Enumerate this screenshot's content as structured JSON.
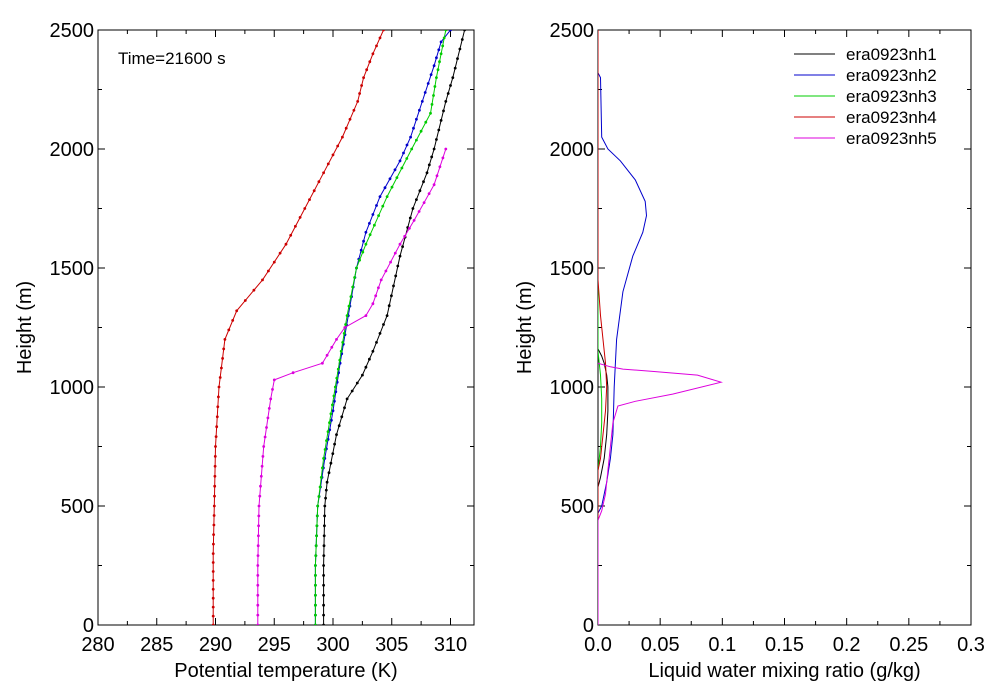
{
  "chart_data": [
    {
      "type": "line",
      "xlabel": "Potential temperature (K)",
      "ylabel": "Height (m)",
      "xlim": [
        280,
        312
      ],
      "ylim": [
        0,
        2500
      ],
      "xticks": [
        "280",
        "285",
        "290",
        "295",
        "300",
        "305",
        "310"
      ],
      "yticks": [
        "0",
        "500",
        "1000",
        "1500",
        "2000",
        "2500"
      ],
      "annotation": "Time=21600 s",
      "markers": true,
      "series": [
        {
          "name": "era0923nh1",
          "color": "#000000",
          "x": [
            299.2,
            299.2,
            299.3,
            299.5,
            300.3,
            301.2,
            302.5,
            303.4,
            304.6,
            305.7,
            306.8,
            308.0,
            308.6,
            309.6,
            310.2,
            311.2
          ],
          "y": [
            0,
            250,
            500,
            600,
            800,
            950,
            1050,
            1150,
            1300,
            1550,
            1750,
            1900,
            2000,
            2200,
            2300,
            2500
          ]
        },
        {
          "name": "era0923nh2",
          "color": "#0000cc",
          "x": [
            298.5,
            298.5,
            298.7,
            299.3,
            300.0,
            300.6,
            301.3,
            302.0,
            302.8,
            304.0,
            305.7,
            306.6,
            307.6,
            308.6,
            309.2,
            310.0
          ],
          "y": [
            0,
            250,
            500,
            700,
            900,
            1100,
            1300,
            1500,
            1650,
            1800,
            1950,
            2050,
            2200,
            2350,
            2450,
            2500
          ]
        },
        {
          "name": "era0923nh3",
          "color": "#00cc00",
          "x": [
            298.5,
            298.5,
            298.7,
            299.2,
            300.2,
            301.2,
            302.0,
            302.8,
            304.6,
            306.7,
            308.3,
            308.8,
            309.2,
            309.6
          ],
          "y": [
            0,
            250,
            500,
            700,
            1000,
            1300,
            1500,
            1600,
            1800,
            2000,
            2150,
            2300,
            2400,
            2500
          ]
        },
        {
          "name": "era0923nh4",
          "color": "#cc0000",
          "x": [
            289.8,
            289.8,
            289.9,
            290.0,
            290.3,
            290.8,
            291.8,
            294.0,
            296.0,
            297.6,
            299.2,
            300.8,
            302.1,
            302.6,
            303.4,
            304.3
          ],
          "y": [
            0,
            300,
            500,
            750,
            1000,
            1200,
            1320,
            1450,
            1600,
            1750,
            1900,
            2050,
            2200,
            2300,
            2400,
            2500
          ]
        },
        {
          "name": "era0923nh5",
          "color": "#dd00dd",
          "x": [
            293.6,
            293.6,
            293.7,
            294.1,
            294.7,
            295.0,
            296.6,
            299.1,
            300.3,
            301.0,
            302.8,
            303.4,
            304.1,
            305.7,
            306.9,
            308.6,
            309.6
          ],
          "y": [
            0,
            250,
            500,
            750,
            950,
            1030,
            1060,
            1100,
            1200,
            1250,
            1300,
            1350,
            1450,
            1600,
            1700,
            1850,
            2000
          ]
        }
      ]
    },
    {
      "type": "line",
      "xlabel": "Liquid water mixing ratio (g/kg)",
      "ylabel": "Height (m)",
      "xlim": [
        0,
        0.3
      ],
      "ylim": [
        0,
        2500
      ],
      "xticks": [
        "0.0",
        "0.05",
        "0.1",
        "0.15",
        "0.2",
        "0.25",
        "0.3"
      ],
      "yticks": [
        "0",
        "500",
        "1000",
        "1500",
        "2000",
        "2500"
      ],
      "legend_position": "top-right",
      "series": [
        {
          "name": "era0923nh1",
          "color": "#000000",
          "x": [
            0.0,
            0.0,
            0.002,
            0.005,
            0.007,
            0.008,
            0.008,
            0.007,
            0.005,
            0.003,
            0.0,
            0.0
          ],
          "y": [
            0,
            580,
            620,
            700,
            800,
            900,
            1000,
            1050,
            1100,
            1130,
            1160,
            2500
          ]
        },
        {
          "name": "era0923nh2",
          "color": "#0000cc",
          "x": [
            0.0,
            0.0,
            0.003,
            0.007,
            0.01,
            0.012,
            0.013,
            0.015,
            0.02,
            0.028,
            0.036,
            0.039,
            0.038,
            0.03,
            0.018,
            0.008,
            0.003,
            0.002,
            0.0
          ],
          "y": [
            0,
            470,
            500,
            600,
            700,
            800,
            1000,
            1200,
            1400,
            1550,
            1650,
            1720,
            1780,
            1870,
            1950,
            2000,
            2050,
            2300,
            2320
          ]
        },
        {
          "name": "era0923nh3",
          "color": "#00cc00",
          "x": [
            0.0,
            0.0,
            0.002,
            0.003,
            0.003,
            0.002,
            0.0,
            0.0
          ],
          "y": [
            0,
            650,
            750,
            850,
            950,
            1050,
            1150,
            2500
          ]
        },
        {
          "name": "era0923nh4",
          "color": "#cc0000",
          "x": [
            0.0,
            0.0,
            0.002,
            0.004,
            0.006,
            0.007,
            0.006,
            0.004,
            0.002,
            0.0,
            0.0
          ],
          "y": [
            0,
            650,
            700,
            800,
            900,
            1000,
            1100,
            1200,
            1300,
            1450,
            2500
          ]
        },
        {
          "name": "era0923nh5",
          "color": "#dd00dd",
          "x": [
            0.0,
            0.0,
            0.003,
            0.006,
            0.008,
            0.01,
            0.012,
            0.016,
            0.03,
            0.06,
            0.099,
            0.08,
            0.045,
            0.02,
            0.01,
            0.0
          ],
          "y": [
            0,
            440,
            480,
            550,
            650,
            750,
            850,
            920,
            940,
            970,
            1020,
            1050,
            1065,
            1075,
            1085,
            1100
          ]
        }
      ]
    }
  ]
}
